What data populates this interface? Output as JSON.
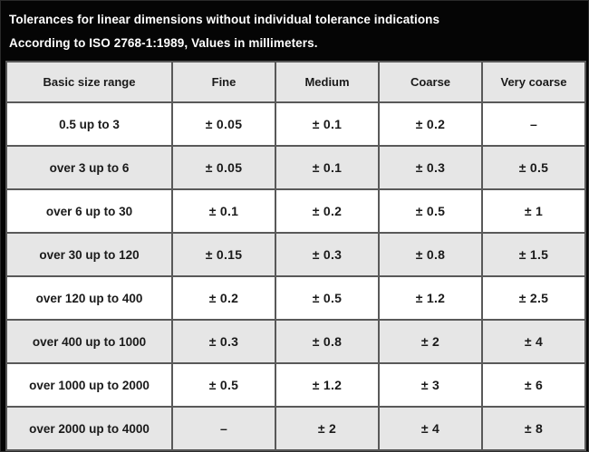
{
  "title": {
    "line1": "Tolerances for linear dimensions without individual tolerance indications",
    "line2": "According to ISO 2768-1:1989, Values in millimeters."
  },
  "table": {
    "columns": [
      "Basic size range",
      "Fine",
      "Medium",
      "Coarse",
      "Very coarse"
    ],
    "rows": [
      [
        "0.5 up to 3",
        "± 0.05",
        "± 0.1",
        "± 0.2",
        "–"
      ],
      [
        "over 3 up to 6",
        "± 0.05",
        "± 0.1",
        "± 0.3",
        "± 0.5"
      ],
      [
        "over 6 up to 30",
        "± 0.1",
        "± 0.2",
        "± 0.5",
        "± 1"
      ],
      [
        "over 30 up to 120",
        "± 0.15",
        "± 0.3",
        "± 0.8",
        "± 1.5"
      ],
      [
        "over 120 up to 400",
        "± 0.2",
        "± 0.5",
        "± 1.2",
        "± 2.5"
      ],
      [
        "over 400 up to 1000",
        "± 0.3",
        "± 0.8",
        "± 2",
        "± 4"
      ],
      [
        "over 1000 up to 2000",
        "± 0.5",
        "± 1.2",
        "± 3",
        "± 6"
      ],
      [
        "over 2000 up to 4000",
        "–",
        "± 2",
        "± 4",
        "± 8"
      ]
    ]
  },
  "colors": {
    "background": "#050505",
    "title_text": "#ffffff",
    "row_base": "#ffffff",
    "row_alt": "#e6e6e6",
    "header_row": "#e6e6e6",
    "border": "#595959",
    "cell_text": "#1a1a1a"
  }
}
